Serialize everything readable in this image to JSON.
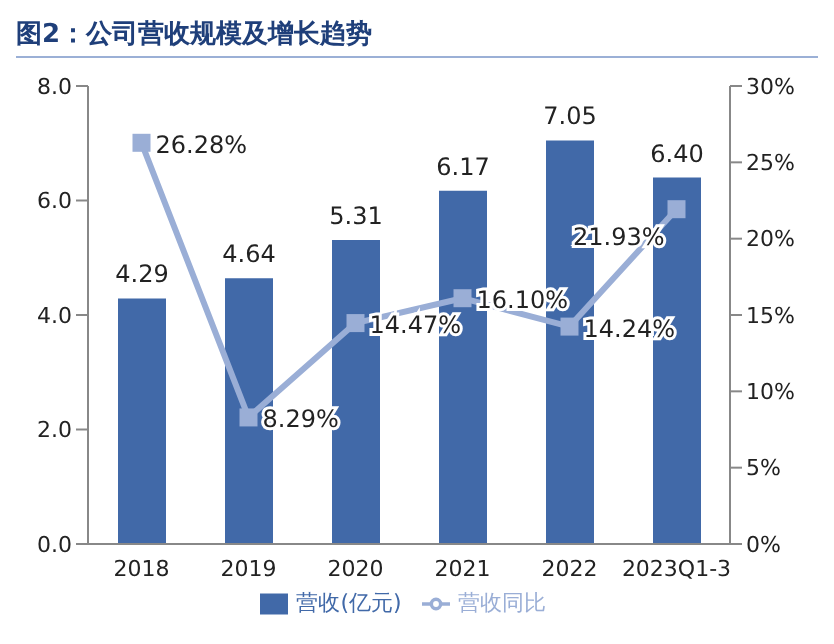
{
  "chart_data": {
    "type": "bar",
    "title": "图2：公司营收规模及增长趋势",
    "categories": [
      "2018",
      "2019",
      "2020",
      "2021",
      "2022",
      "2023Q1-3"
    ],
    "series": [
      {
        "name": "营收(亿元)",
        "color": "#4169a8",
        "values": [
          4.29,
          4.64,
          5.31,
          6.17,
          7.05,
          6.4
        ],
        "value_labels": [
          "4.29",
          "4.64",
          "5.31",
          "6.17",
          "7.05",
          "6.40"
        ]
      },
      {
        "name": "营收同比",
        "type": "line",
        "axis": "y2",
        "color": "#9aaed6",
        "marker": "square",
        "values": [
          26.28,
          8.29,
          14.47,
          16.1,
          14.24,
          21.93
        ],
        "value_labels": [
          "26.28%",
          "8.29%",
          "14.47%",
          "16.10%",
          "14.24%",
          "21.93%"
        ]
      }
    ],
    "ylim": [
      0,
      8
    ],
    "yticks": [
      {
        "value": 0,
        "label": "0.0"
      },
      {
        "value": 2,
        "label": "2.0"
      },
      {
        "value": 4,
        "label": "4.0"
      },
      {
        "value": 6,
        "label": "6.0"
      },
      {
        "value": 8,
        "label": "8.0"
      }
    ],
    "y2lim": [
      0,
      30
    ],
    "y2ticks": [
      {
        "value": 0,
        "label": "0%"
      },
      {
        "value": 5,
        "label": "5%"
      },
      {
        "value": 10,
        "label": "10%"
      },
      {
        "value": 15,
        "label": "15%"
      },
      {
        "value": 20,
        "label": "20%"
      },
      {
        "value": 25,
        "label": "25%"
      },
      {
        "value": 30,
        "label": "30%"
      }
    ],
    "legend": "bottom"
  }
}
